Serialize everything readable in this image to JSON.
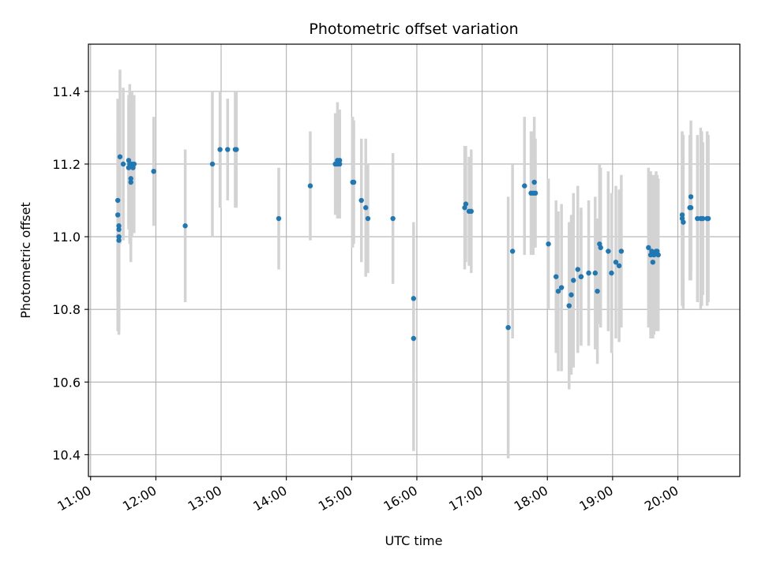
{
  "chart_data": {
    "type": "scatter",
    "title": "Photometric offset variation",
    "xlabel": "UTC time",
    "ylabel": "Photometric offset",
    "xlim": [
      "10:58",
      "20:57"
    ],
    "ylim": [
      10.34,
      11.53
    ],
    "grid": true,
    "x_ticks": [
      "11:00",
      "12:00",
      "13:00",
      "14:00",
      "15:00",
      "16:00",
      "17:00",
      "18:00",
      "19:00",
      "20:00"
    ],
    "y_ticks": [
      10.4,
      10.6,
      10.8,
      11.0,
      11.2,
      11.4
    ],
    "y_tick_labels": [
      "10.4",
      "10.6",
      "10.8",
      "11.0",
      "11.2",
      "11.4"
    ],
    "colors": {
      "points": "#1f77b4",
      "errorbars": "#d3d3d3",
      "grid": "#b0b0b0"
    },
    "series": [
      {
        "marker": "point",
        "x": [
          "11:25",
          "11:25",
          "11:26",
          "11:26",
          "11:26",
          "11:26",
          "11:27",
          "11:30",
          "11:35",
          "11:35",
          "11:36",
          "11:37",
          "11:37",
          "11:38",
          "11:39",
          "11:40",
          "11:58",
          "12:27",
          "12:52",
          "12:59",
          "13:06",
          "13:13",
          "13:14",
          "13:53",
          "14:22",
          "14:45",
          "14:47",
          "14:47",
          "14:49",
          "14:49",
          "15:01",
          "15:02",
          "15:09",
          "15:13",
          "15:15",
          "15:38",
          "15:57",
          "15:57",
          "16:44",
          "16:45",
          "16:48",
          "16:50",
          "17:24",
          "17:28",
          "17:39",
          "17:45",
          "17:47",
          "17:48",
          "17:49",
          "18:01",
          "18:08",
          "18:10",
          "18:13",
          "18:20",
          "18:22",
          "18:24",
          "18:28",
          "18:31",
          "18:31",
          "18:38",
          "18:44",
          "18:46",
          "18:48",
          "18:49",
          "18:56",
          "18:59",
          "19:03",
          "19:06",
          "19:08",
          "19:33",
          "19:35",
          "19:36",
          "19:37",
          "19:38",
          "19:40",
          "19:41",
          "19:42",
          "20:04",
          "20:04",
          "20:05",
          "20:11",
          "20:12",
          "20:12",
          "20:18",
          "20:21",
          "20:22",
          "20:23",
          "20:27",
          "20:27",
          "20:28"
        ],
        "y": [
          11.1,
          11.06,
          11.02,
          11.03,
          11.0,
          10.99,
          11.22,
          11.2,
          11.21,
          11.19,
          11.2,
          11.15,
          11.16,
          11.2,
          11.19,
          11.2,
          11.18,
          11.03,
          11.2,
          11.24,
          11.24,
          11.24,
          11.24,
          11.05,
          11.14,
          11.2,
          11.2,
          11.21,
          11.21,
          11.2,
          11.15,
          11.15,
          11.1,
          11.08,
          11.05,
          11.05,
          10.83,
          10.72,
          11.08,
          11.09,
          11.07,
          11.07,
          10.75,
          10.96,
          11.14,
          11.12,
          11.12,
          11.15,
          11.12,
          10.98,
          10.89,
          10.85,
          10.86,
          10.81,
          10.84,
          10.88,
          10.91,
          10.89,
          10.89,
          10.9,
          10.9,
          10.85,
          10.98,
          10.97,
          10.96,
          10.9,
          10.93,
          10.92,
          10.96,
          10.97,
          10.95,
          10.96,
          10.93,
          10.95,
          10.96,
          10.96,
          10.95,
          11.05,
          11.06,
          11.04,
          11.08,
          11.08,
          11.11,
          11.05,
          11.05,
          11.05,
          11.05,
          11.05,
          11.05,
          11.05
        ],
        "yerr": [
          0.27,
          0.32,
          0.28,
          0.27,
          0.26,
          0.26,
          0.24,
          0.21,
          0.18,
          0.17,
          0.22,
          0.22,
          0.22,
          0.2,
          0.17,
          0.19,
          0.15,
          0.21,
          0.2,
          0.16,
          0.14,
          0.16,
          0.16,
          0.14,
          0.15,
          0.14,
          0.14,
          0.16,
          0.12,
          0.15,
          0.18,
          0.17,
          0.17,
          0.19,
          0.15,
          0.18,
          0.21,
          0.31,
          0.17,
          0.16,
          0.15,
          0.17,
          0.36,
          0.24,
          0.19,
          0.17,
          0.17,
          0.18,
          0.15,
          0.18,
          0.21,
          0.22,
          0.23,
          0.23,
          0.22,
          0.24,
          0.23,
          0.19,
          0.18,
          0.2,
          0.21,
          0.2,
          0.22,
          0.22,
          0.22,
          0.22,
          0.21,
          0.21,
          0.21,
          0.22,
          0.23,
          0.21,
          0.21,
          0.22,
          0.22,
          0.21,
          0.21,
          0.24,
          0.23,
          0.24,
          0.2,
          0.2,
          0.21,
          0.23,
          0.25,
          0.24,
          0.21,
          0.24,
          0.23,
          0.23
        ]
      }
    ]
  }
}
